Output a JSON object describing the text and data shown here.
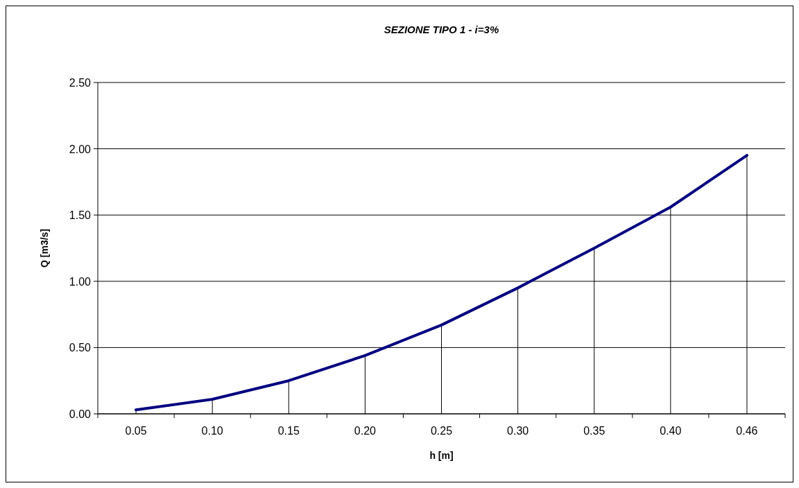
{
  "chart_data": {
    "type": "line",
    "title": "SEZIONE TIPO 1 - i=3%",
    "xlabel": "h [m]",
    "ylabel": "Q [m3/s]",
    "categories": [
      "0.05",
      "0.10",
      "0.15",
      "0.20",
      "0.25",
      "0.30",
      "0.35",
      "0.40",
      "0.46"
    ],
    "series": [
      {
        "type": "bar",
        "color": "#000000",
        "values": [
          0.03,
          0.11,
          0.25,
          0.44,
          0.67,
          0.95,
          1.25,
          1.56,
          1.95
        ]
      },
      {
        "color": "#000080",
        "values": [
          0.03,
          0.11,
          0.25,
          0.44,
          0.67,
          0.95,
          1.25,
          1.56,
          1.95
        ]
      }
    ],
    "ylim": [
      0,
      2.5
    ],
    "yticks": [
      {
        "value": 0,
        "label": "0.00"
      },
      {
        "value": 0.5,
        "label": "0.50"
      },
      {
        "value": 1,
        "label": "1.00"
      },
      {
        "value": 1.5,
        "label": "1.50"
      },
      {
        "value": 2,
        "label": "2.00"
      },
      {
        "value": 2.5,
        "label": "2.50"
      }
    ],
    "grid": "y",
    "marker": "none",
    "line_style": "solid"
  }
}
